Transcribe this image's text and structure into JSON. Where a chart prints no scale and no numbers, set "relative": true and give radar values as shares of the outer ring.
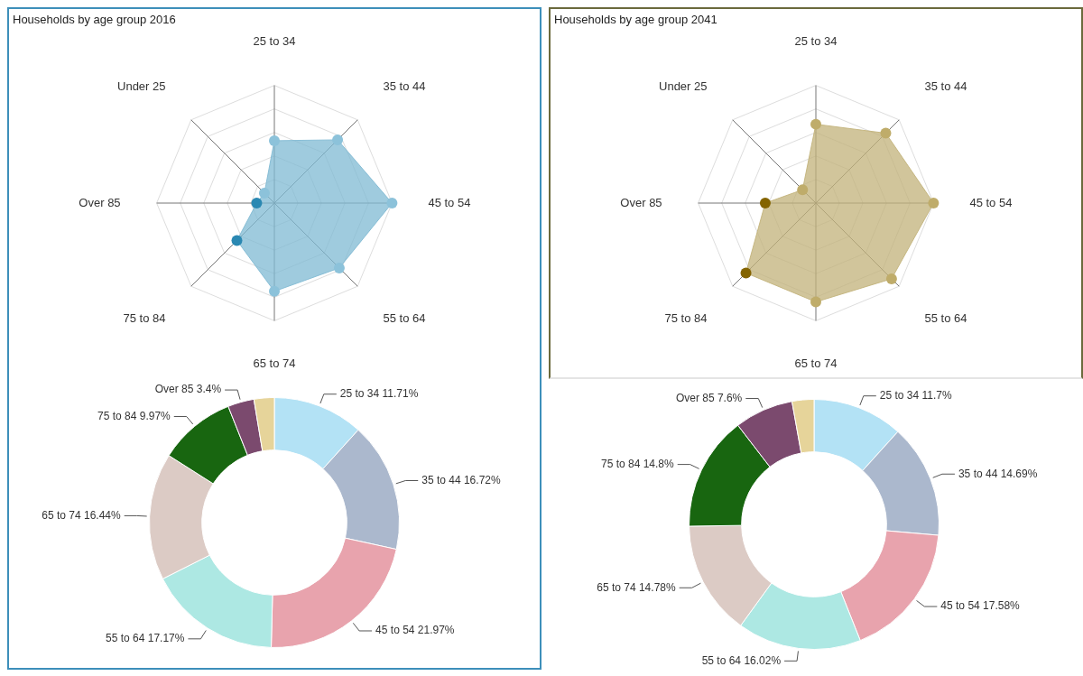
{
  "chart_data": [
    {
      "type": "radar",
      "title": "Households by age group 2016",
      "relative": true,
      "grid": true,
      "marker": "circle",
      "legend": false,
      "categories": [
        "25 to 34",
        "35 to 44",
        "45 to 54",
        "55 to 64",
        "65 to 74",
        "75 to 84",
        "Over 85",
        "Under 25"
      ],
      "series": [
        {
          "color": "#7fb9d3",
          "colors": [
            "#8cc2da",
            "#8cc2da",
            "#8cc2da",
            "#8cc2da",
            "#8cc2da",
            "#2a88b2",
            "#2a88b2",
            "#8cc2da"
          ],
          "values": [
            0.53,
            0.76,
            1.0,
            0.78,
            0.75,
            0.45,
            0.15,
            0.12
          ]
        }
      ]
    },
    {
      "type": "radar",
      "title": "Households by age group 2041",
      "relative": true,
      "grid": true,
      "marker": "circle",
      "legend": false,
      "categories": [
        "25 to 34",
        "35 to 44",
        "45 to 54",
        "55 to 64",
        "65 to 74",
        "75 to 84",
        "Over 85",
        "Under 25"
      ],
      "series": [
        {
          "color": "#c2b27a",
          "colors": [
            "#bfac6a",
            "#bfac6a",
            "#bfac6a",
            "#bfac6a",
            "#bfac6a",
            "#846400",
            "#846400",
            "#bfac6a"
          ],
          "values": [
            0.67,
            0.84,
            1.0,
            0.91,
            0.84,
            0.84,
            0.43,
            0.16
          ]
        }
      ]
    },
    {
      "type": "donut",
      "legend": false,
      "categories": [
        "25 to 34",
        "35 to 44",
        "45 to 54",
        "55 to 64",
        "65 to 74",
        "75 to 84",
        "Over 85",
        null
      ],
      "values": [
        11.71,
        16.72,
        21.97,
        17.17,
        16.44,
        9.97,
        3.4,
        2.62
      ],
      "value_labels": [
        "11.71%",
        "16.72%",
        "21.97%",
        "17.17%",
        "16.44%",
        "9.97%",
        "3.4%",
        null
      ],
      "colors": [
        "#b3e2f5",
        "#abb8cd",
        "#e8a3ad",
        "#ade8e3",
        "#dccbc5",
        "#186610",
        "#7b4a6e",
        "#e6d49a"
      ]
    },
    {
      "type": "donut",
      "legend": false,
      "categories": [
        "25 to 34",
        "35 to 44",
        "45 to 54",
        "55 to 64",
        "65 to 74",
        "75 to 84",
        "Over 85",
        null
      ],
      "values": [
        11.7,
        14.69,
        17.58,
        16.02,
        14.78,
        14.8,
        7.6,
        2.83
      ],
      "value_labels": [
        "11.7%",
        "14.69%",
        "17.58%",
        "16.02%",
        "14.78%",
        "14.8%",
        "7.6%",
        null
      ],
      "colors": [
        "#b3e2f5",
        "#abb8cd",
        "#e8a3ad",
        "#ade8e3",
        "#dccbc5",
        "#186610",
        "#7b4a6e",
        "#e6d49a"
      ]
    }
  ]
}
